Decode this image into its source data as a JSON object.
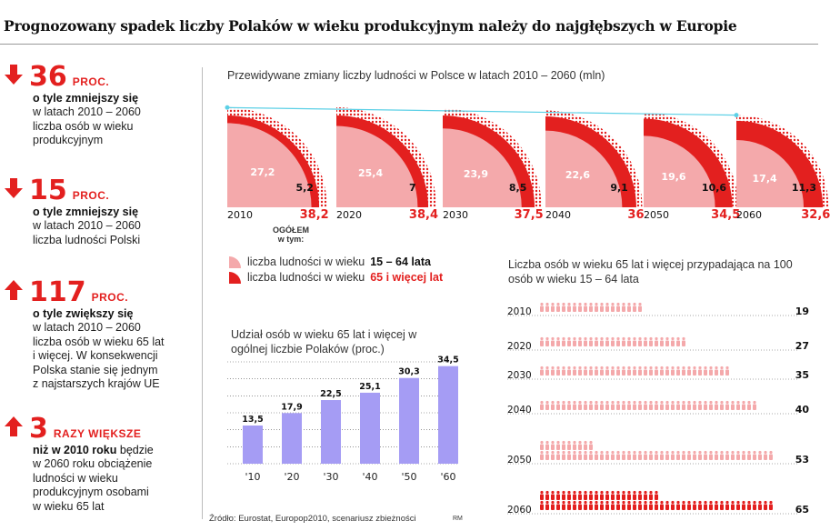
{
  "title": "Prognozowany spadek liczby Polaków w wieku produkcyjnym należy do najgłębszych w Europie",
  "stats": [
    {
      "value": "36",
      "unit": "PROC.",
      "bold": "o tyle zmniejszy się",
      "desc": "w latach 2010 – 2060\nliczba osób w wieku\nprodukcyjnym"
    },
    {
      "value": "15",
      "unit": "PROC.",
      "bold": "o tyle zmniejszy się",
      "desc": "w latach 2010 – 2060\nliczba ludności Polski"
    },
    {
      "value": "117",
      "unit": "PROC.",
      "bold": "o tyle zwiększy się",
      "desc": "w latach 2010 – 2060\nliczba osób w wieku 65 lat\ni więcej. W konsekwencji\nPolska stanie się jednym\nz najstarszych krajów UE"
    },
    {
      "value": "3",
      "unit": "RAZY WIĘKSZE",
      "bold": "niż w 2010 roku",
      "bold_tail": " będzie",
      "desc": "w 2060 roku obciążenie\nludności w wieku\nprodukcyjnym osobami\nw wieku 65 lat"
    }
  ],
  "colors": {
    "red": "#e3201f",
    "pink": "#f4a9ab",
    "purple": "#a59cf4",
    "cyan": "#5cd0e6"
  },
  "chart_data": [
    {
      "type": "pie",
      "title": "Przewidywane zmiany liczby ludności w Polsce w latach 2010 – 2060 (mln)",
      "total_label": "OGÓŁEM w tym:",
      "categories": [
        "2010",
        "2020",
        "2030",
        "2040",
        "2050",
        "2060"
      ],
      "series": [
        {
          "name": "liczba ludności w wieku 15 – 64 lata",
          "values": [
            27.2,
            25.4,
            23.9,
            22.6,
            19.6,
            17.4
          ]
        },
        {
          "name": "liczba ludności w wieku 65 i więcej lat",
          "values": [
            5.2,
            7,
            8.5,
            9.1,
            10.6,
            11.3
          ]
        }
      ],
      "totals": [
        38.2,
        38.4,
        37.5,
        36,
        34.5,
        32.6
      ],
      "value_labels_a": [
        "27,2",
        "25,4",
        "23,9",
        "22,6",
        "19,6",
        "17,4"
      ],
      "value_labels_b": [
        "5,2",
        "7",
        "8,5",
        "9,1",
        "10,6",
        "11,3"
      ],
      "total_labels": [
        "38,2",
        "38,4",
        "37,5",
        "36",
        "34,5",
        "32,6"
      ]
    },
    {
      "type": "bar",
      "title": "Udział osób w wieku 65 lat i więcej w ogólnej liczbie Polaków (proc.)",
      "categories": [
        "'10",
        "'20",
        "'30",
        "'40",
        "'50",
        "'60"
      ],
      "values": [
        13.5,
        17.9,
        22.5,
        25.1,
        30.3,
        34.5
      ],
      "value_labels": [
        "13,5",
        "17,9",
        "22,5",
        "25,1",
        "30,3",
        "34,5"
      ],
      "ylim": [
        0,
        36
      ]
    },
    {
      "type": "bar",
      "title": "Liczba osób w wieku 65 lat i więcej przypadająca na 100 osób w wieku 15 – 64 lata",
      "categories": [
        "2010",
        "2020",
        "2030",
        "2040",
        "2050",
        "2060"
      ],
      "values": [
        19,
        27,
        35,
        40,
        53,
        65
      ]
    }
  ],
  "legend": {
    "a_prefix": "liczba ludności w wieku ",
    "a_bold": "15 – 64 lata",
    "b_prefix": "liczba ludności w wieku ",
    "b_bold": "65 i więcej lat"
  },
  "source": "Źródło: Eurostat, Europop2010, scenariusz zbieżności",
  "author": "RM"
}
